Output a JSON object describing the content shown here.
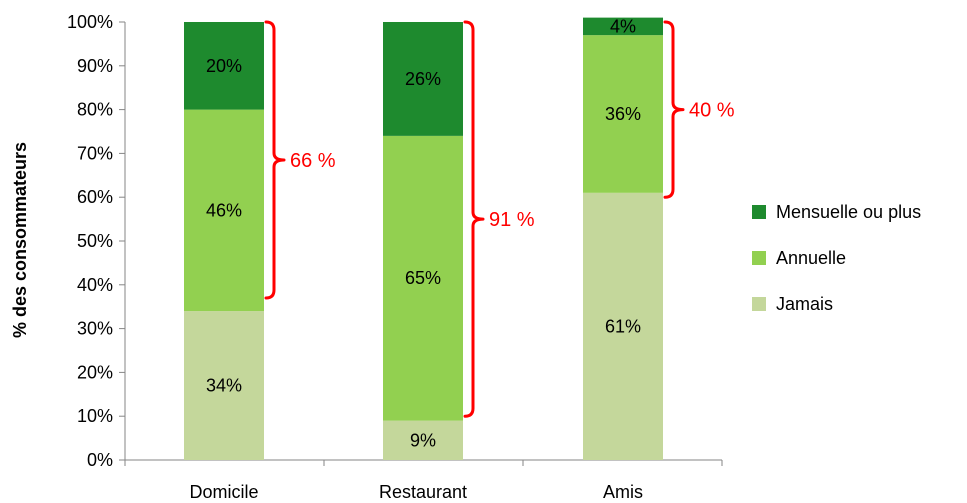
{
  "chart_data": {
    "type": "bar",
    "stacked": true,
    "ylabel": "% des consommateurs",
    "xlabel": "",
    "ylim": [
      0,
      100
    ],
    "yticks": [
      "0%",
      "10%",
      "20%",
      "30%",
      "40%",
      "50%",
      "60%",
      "70%",
      "80%",
      "90%",
      "100%"
    ],
    "categories": [
      "Domicile",
      "Restaurant",
      "Amis"
    ],
    "series": [
      {
        "name": "Jamais",
        "values": [
          34,
          9,
          61
        ],
        "labels": [
          "34%",
          "9%",
          "61%"
        ],
        "color": "#c4d79b"
      },
      {
        "name": "Annuelle",
        "values": [
          46,
          65,
          36
        ],
        "labels": [
          "46%",
          "65%",
          "36%"
        ],
        "color": "#92d050"
      },
      {
        "name": "Mensuelle ou plus",
        "values": [
          20,
          26,
          4
        ],
        "labels": [
          "20%",
          "26%",
          "4%"
        ],
        "color": "#1e8a2e"
      }
    ],
    "legend_order": [
      "Mensuelle ou plus",
      "Annuelle",
      "Jamais"
    ],
    "legend_position": "right",
    "annotations": [
      {
        "category": "Domicile",
        "from": 37,
        "to": 100,
        "label": "66 %"
      },
      {
        "category": "Restaurant",
        "from": 10,
        "to": 100,
        "label": "91 %"
      },
      {
        "category": "Amis",
        "from": 60,
        "to": 100,
        "label": "40 %"
      }
    ],
    "annotation_color": "#ff0000",
    "grid": false
  }
}
